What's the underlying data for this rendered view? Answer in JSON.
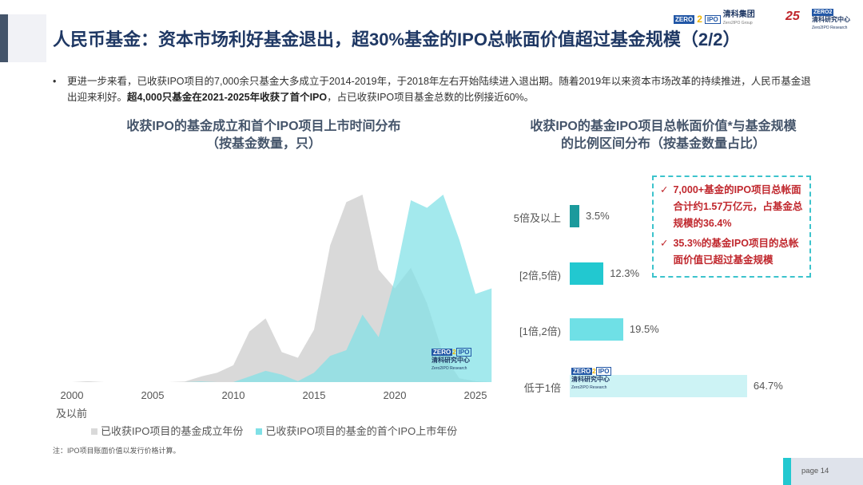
{
  "header": {
    "title": "人民币基金：资本市场利好基金退出，超30%基金的IPO总帐面价值超过基金规模（2/2）",
    "logo_group": {
      "zero": "ZERO",
      "two": "2",
      "ipo": "IPO",
      "cn": "清科集团",
      "en": "Zero2IPO Group"
    },
    "logo_25": "25",
    "logo_research": {
      "cn": "清科研究中心",
      "en": "Zero2IPO Research"
    }
  },
  "bullet": {
    "text1": "更进一步来看，已收获IPO项目的7,000余只基金大多成立于2014-2019年，于2018年左右开始陆续进入退出期。随着2019年以来资本市场改革的持续推进，人民币基金退出迎来利好。",
    "bold": "超4,000只基金在2021-2025年收获了首个IPO",
    "text2": "，占已收获IPO项目基金总数的比例接近60%。"
  },
  "colors": {
    "gray": "#d9d9d9",
    "cyan": "#7fe0e6",
    "title": "#1f3864",
    "accent_red": "#c0272d",
    "bar_dark": "#1b9a9c",
    "bar_mid": "#22c8d0",
    "bar_light": "#6fe0e6",
    "bar_pale": "#cdf3f5"
  },
  "watermark": {
    "zero": "ZERO",
    "two": "2",
    "ipo": "IPO",
    "cn": "清科研究中心",
    "en": "Zero2IPO Research"
  },
  "chart_data": [
    {
      "type": "area",
      "title": "收获IPO的基金成立和首个IPO项目上市时间分布",
      "subtitle": "（按基金数量，只）",
      "x": [
        2000,
        2001,
        2002,
        2003,
        2004,
        2005,
        2006,
        2007,
        2008,
        2009,
        2010,
        2011,
        2012,
        2013,
        2014,
        2015,
        2016,
        2017,
        2018,
        2019,
        2020,
        2021,
        2022,
        2023,
        2024,
        2025,
        2026
      ],
      "tick_labels": [
        "2000",
        "2005",
        "2010",
        "2015",
        "2020",
        "2025"
      ],
      "first_tick_sublabel": "及以前",
      "y_axis_shown": false,
      "grid": false,
      "legend": "bottom",
      "series": [
        {
          "name": "已收获IPO项目的基金成立年份",
          "color": "#d9d9d9",
          "values": [
            0,
            0.5,
            0,
            0,
            0,
            0,
            0,
            0.3,
            3,
            5,
            9,
            27,
            34,
            16,
            13,
            28,
            73,
            96,
            100,
            60,
            50,
            61,
            42,
            15,
            2,
            0.5,
            0
          ]
        },
        {
          "name": "已收获IPO项目的基金的首个IPO上市年份",
          "color": "#7fe0e6",
          "values": [
            0,
            0,
            0,
            0,
            0,
            0,
            0,
            0,
            0.3,
            0,
            0,
            3,
            6,
            4,
            0.5,
            5,
            14,
            17,
            36,
            24,
            55,
            97,
            93,
            100,
            76,
            47,
            50
          ]
        }
      ]
    },
    {
      "type": "bar",
      "orientation": "horizontal",
      "title": "收获IPO的基金IPO项目总帐面价值*与基金规模",
      "subtitle": "的比例区间分布（按基金数量占比）",
      "categories": [
        "5倍及以上",
        "[2倍,5倍)",
        "[1倍,2倍)",
        "低于1倍"
      ],
      "values": [
        3.5,
        12.3,
        19.5,
        64.7
      ],
      "labels": [
        "3.5%",
        "12.3%",
        "19.5%",
        "64.7%"
      ],
      "bar_colors": [
        "#1b9a9c",
        "#22c8d0",
        "#6fe0e6",
        "#cdf3f5"
      ],
      "annotations": [
        "7,000+基金的IPO项目总帐面合计约1.57万亿元，占基金总规模的36.4%",
        "35.3%的基金IPO项目的总帐面价值已超过基金规模"
      ],
      "annotation_mark": "✓"
    }
  ],
  "footer": {
    "note": "注：IPO项目账面价值以发行价格计算。",
    "page": "page  14"
  }
}
